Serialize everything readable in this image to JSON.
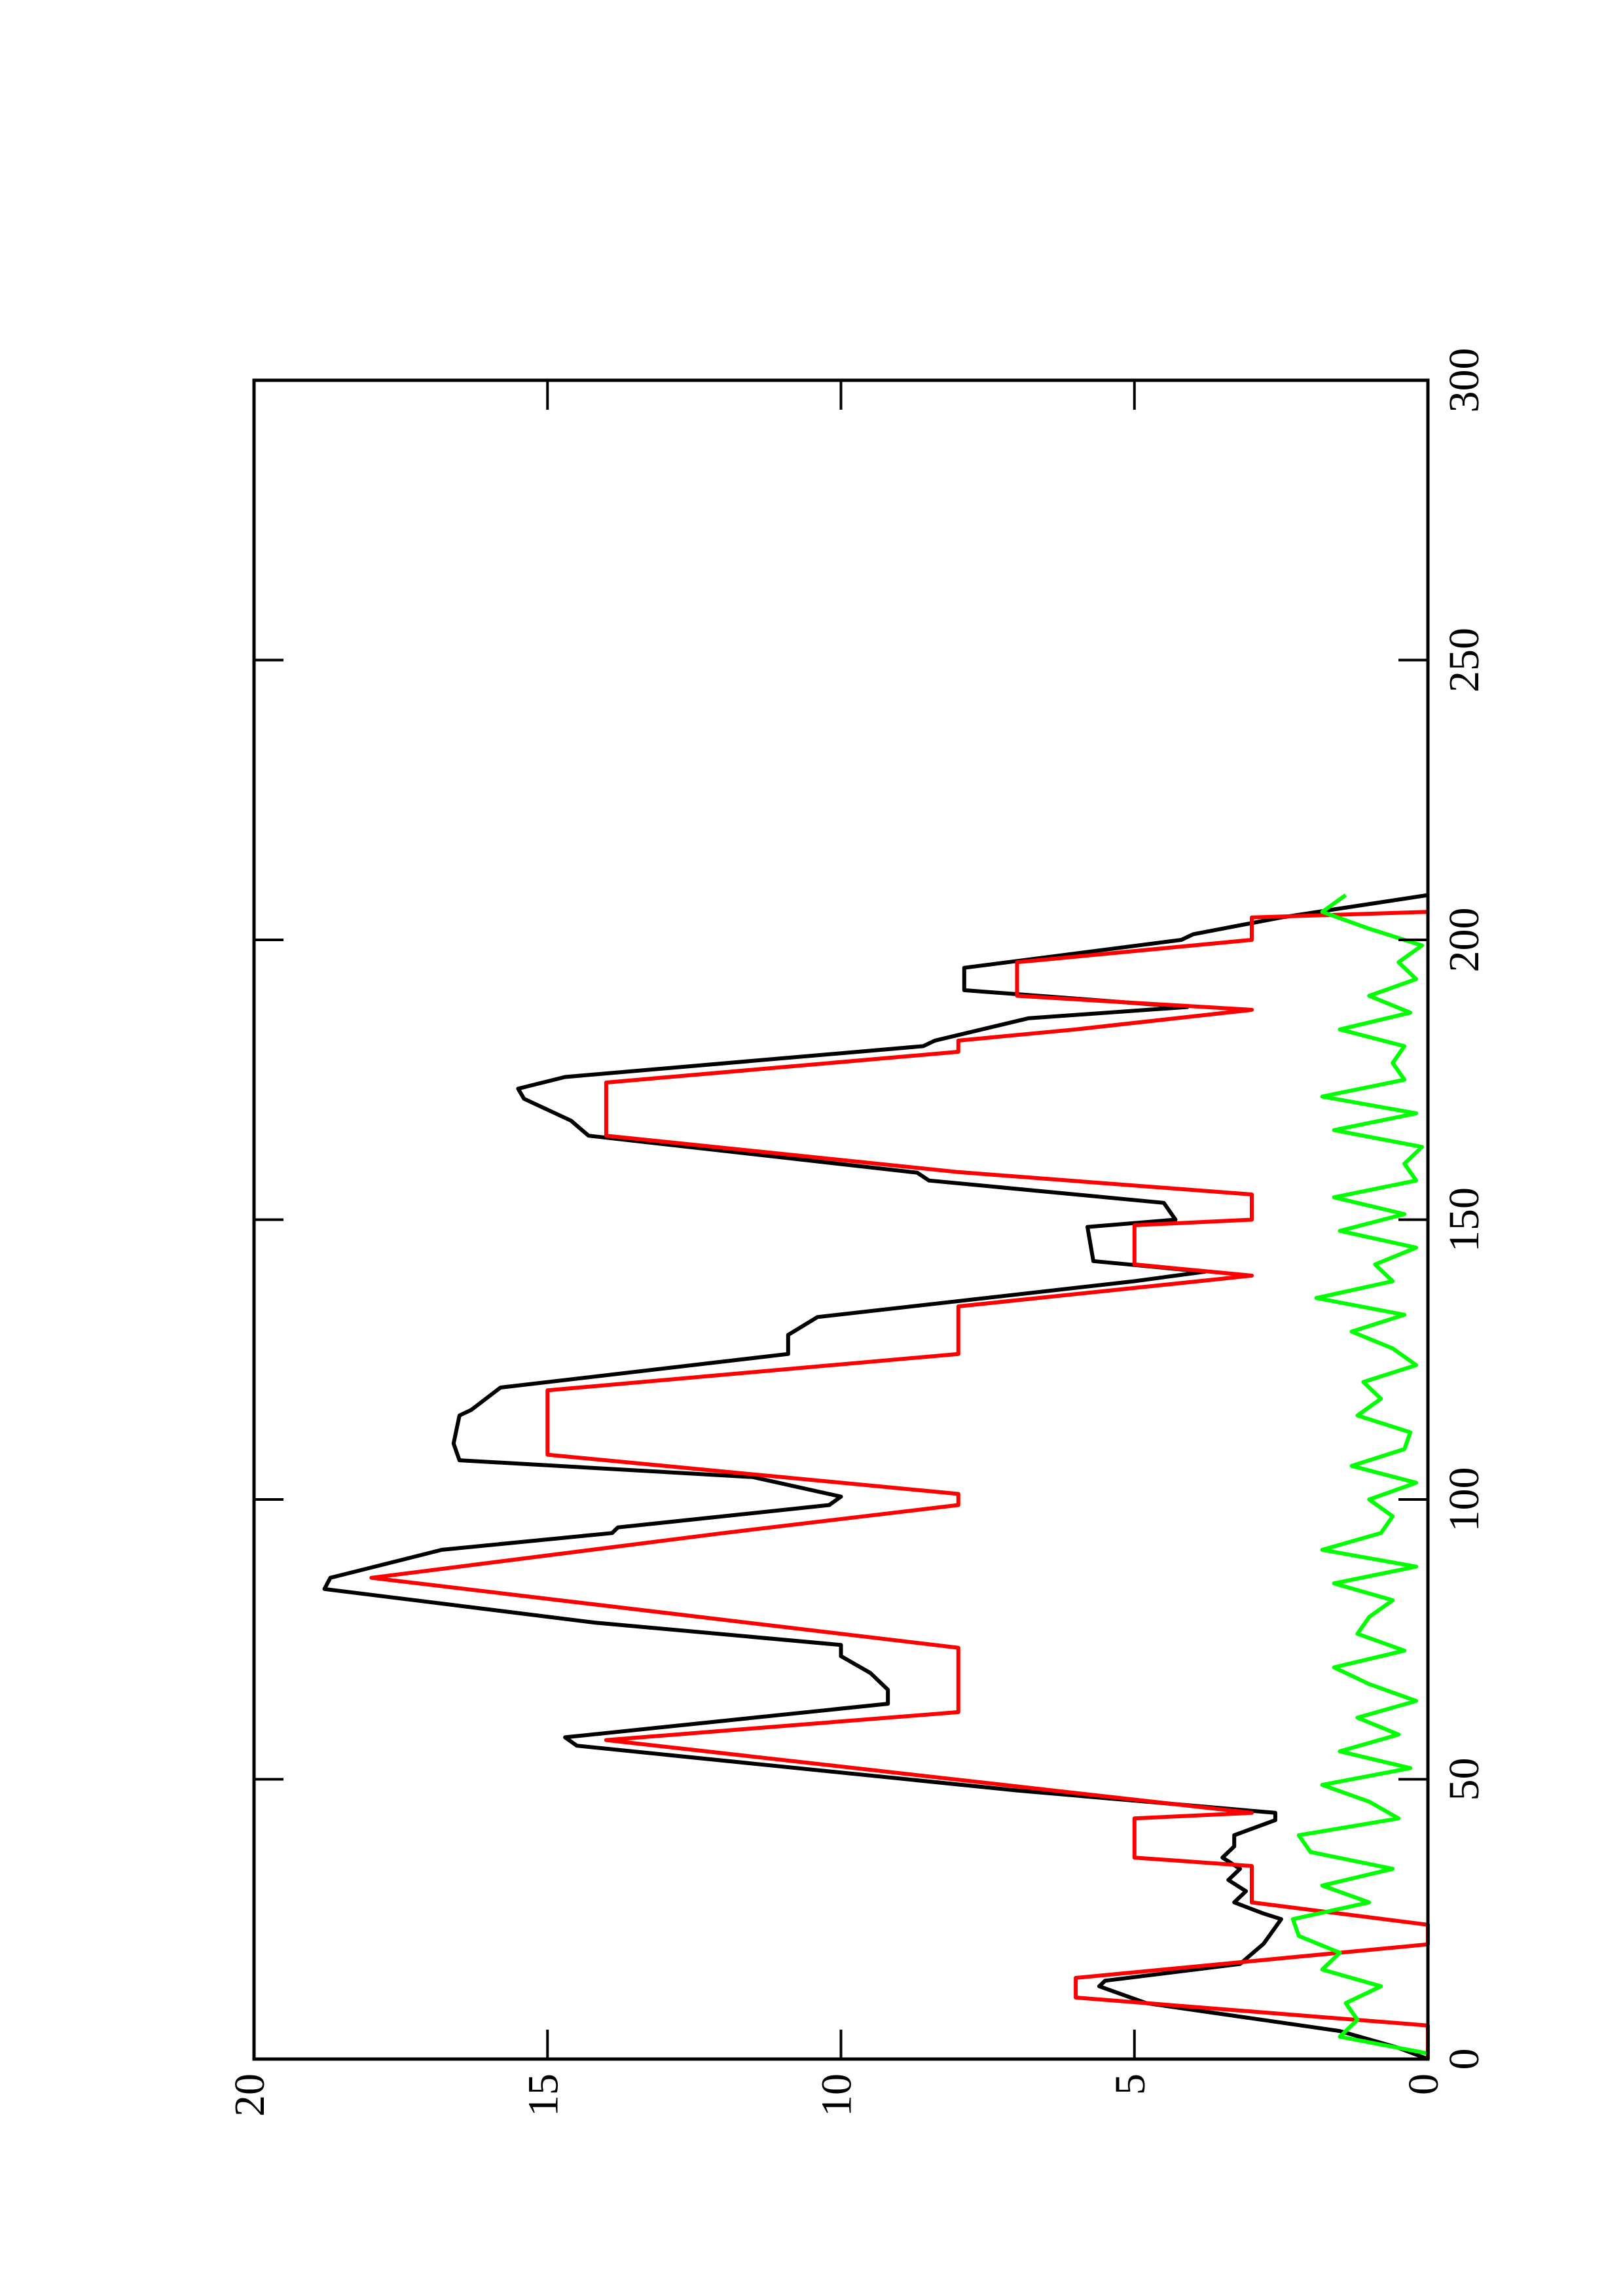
{
  "chart_data": {
    "type": "line",
    "xlim": [
      0,
      300
    ],
    "xticks": [
      0,
      50,
      100,
      150,
      200,
      250,
      300
    ],
    "ylim": [
      0,
      20
    ],
    "yticks": [
      0,
      5,
      10,
      15,
      20
    ],
    "series": [
      {
        "color": "#000000",
        "x": [
          0,
          2,
          5,
          10,
          13,
          14,
          17,
          20.6,
          25,
          26,
          28,
          30,
          32,
          34,
          36,
          38,
          40,
          42.7,
          44,
          48,
          56,
          57.5,
          63.5,
          66,
          69,
          72,
          74,
          78,
          84,
          86,
          91,
          94,
          95,
          99,
          100.5,
          104,
          107,
          110,
          115,
          116,
          120,
          126,
          129.4,
          132.6,
          139,
          140.7,
          142.6,
          148.7,
          150,
          153,
          157,
          158.4,
          165,
          167.7,
          171.6,
          173.4,
          175.5,
          181,
          182,
          186,
          188,
          191,
          195,
          200,
          201,
          204,
          208
        ],
        "values": [
          0,
          0.5,
          1.5,
          4.8,
          5.6,
          5.5,
          3.2,
          2.8,
          2.5,
          2.8,
          3.3,
          3.1,
          3.4,
          3.2,
          3.5,
          3.3,
          3.3,
          2.6,
          2.6,
          7.0,
          14.5,
          14.7,
          9.2,
          9.2,
          9.5,
          10,
          10,
          14.2,
          18.8,
          18.7,
          16.8,
          13.9,
          13.8,
          10.2,
          10.0,
          11.5,
          16.5,
          16.6,
          16.5,
          16.3,
          15.8,
          10.9,
          10.9,
          10.4,
          5.0,
          3.8,
          5.7,
          5.8,
          4.3,
          4.5,
          8.5,
          8.7,
          14.3,
          14.6,
          15.4,
          15.5,
          14.7,
          8.6,
          8.4,
          6.8,
          4.1,
          7.9,
          7.9,
          4.2,
          4.0,
          2.5,
          0
        ]
      },
      {
        "color": "#ff0000",
        "x": [
          0,
          6,
          11,
          14.5,
          20.5,
          24,
          28,
          34.5,
          36,
          43,
          44,
          57,
          62,
          73.5,
          86,
          94,
          99,
          101,
          108,
          119.5,
          126,
          134.5,
          140,
          142,
          149,
          150,
          154.5,
          158.5,
          165,
          174.5,
          180,
          182,
          184,
          187.5,
          190,
          196,
          200,
          204,
          205
        ],
        "values": [
          0,
          0,
          6,
          6,
          0,
          0,
          3,
          3,
          5,
          5,
          3,
          14,
          8,
          8,
          18,
          12,
          8,
          8,
          15,
          15,
          8,
          8,
          3,
          5,
          5,
          3,
          3,
          8,
          14,
          14,
          8,
          8,
          6,
          3,
          7,
          7,
          3,
          3,
          0
        ]
      },
      {
        "color": "#00ff00",
        "x": [
          1,
          4,
          7,
          10,
          13,
          16,
          19,
          22,
          25,
          28,
          31,
          34,
          37,
          40,
          43,
          46,
          49,
          52,
          55,
          58,
          61,
          64,
          67,
          70,
          73,
          76,
          79,
          82,
          85,
          88,
          91,
          94,
          97,
          100,
          103,
          106,
          109,
          112,
          115,
          118,
          121,
          124,
          127,
          130,
          133,
          136,
          139,
          142,
          145,
          148,
          151,
          154,
          157,
          160,
          163,
          166,
          169,
          172,
          175,
          178,
          181,
          184,
          187,
          190,
          193,
          196,
          199,
          202,
          205,
          208
        ],
        "values": [
          0,
          1.5,
          1.2,
          1.4,
          0.8,
          1.8,
          1.5,
          2.2,
          2.3,
          1.0,
          1.8,
          0.6,
          2.0,
          2.2,
          0.5,
          1.0,
          1.8,
          0.3,
          1.5,
          0.5,
          1.2,
          0.2,
          1.0,
          1.6,
          0.4,
          1.2,
          1.0,
          0.6,
          1.6,
          0.2,
          1.8,
          0.8,
          0.6,
          1.0,
          0.2,
          1.3,
          0.4,
          0.3,
          1.2,
          0.8,
          1.1,
          0.2,
          0.6,
          1.3,
          0.4,
          1.9,
          0.6,
          0.9,
          0.2,
          1.5,
          0.4,
          1.6,
          0.2,
          0.4,
          0.1,
          1.6,
          0.2,
          1.8,
          0.4,
          0.6,
          0.4,
          1.5,
          0.3,
          1.0,
          0.2,
          0.5,
          0.1,
          1.0,
          1.8,
          1.4
        ]
      }
    ]
  }
}
